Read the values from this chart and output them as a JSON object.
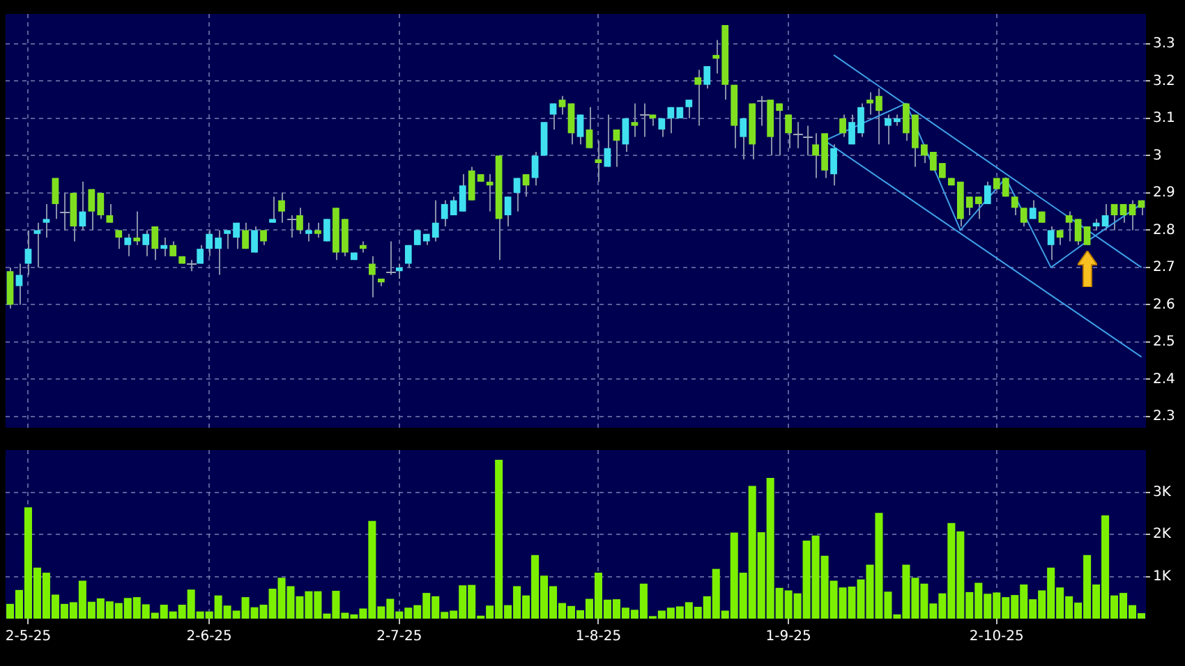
{
  "chart_data": [
    {
      "type": "candlestick",
      "categories": [
        null,
        null,
        null,
        null,
        null,
        null,
        null,
        null,
        null,
        null,
        null,
        null,
        null,
        null,
        null,
        null,
        null,
        null,
        null,
        null,
        null,
        null,
        null,
        null,
        null,
        null,
        null,
        null,
        null,
        null,
        null,
        null,
        null,
        null,
        null,
        null,
        null,
        null,
        null,
        null,
        null,
        null,
        null,
        null,
        null,
        null,
        null,
        null,
        null,
        null,
        null,
        null,
        null,
        null,
        null,
        null,
        null,
        null,
        null,
        null,
        null,
        null,
        null,
        null,
        null,
        null,
        null,
        null,
        null,
        null,
        null,
        null,
        null,
        null,
        null,
        null,
        null,
        null,
        null,
        null,
        null,
        null,
        null,
        null,
        null,
        null,
        null,
        null,
        null,
        null,
        null,
        null,
        null,
        null,
        null,
        null,
        null,
        null,
        null,
        null,
        null,
        null,
        null,
        null,
        null,
        null,
        null,
        null,
        null,
        null,
        null,
        null,
        null,
        null,
        null,
        null,
        null,
        null,
        null,
        null,
        null,
        null,
        null,
        null,
        null,
        null
      ],
      "ohlc": [
        [
          2.69,
          2.7,
          2.59,
          2.6
        ],
        [
          2.65,
          2.71,
          2.6,
          2.68
        ],
        [
          2.71,
          2.8,
          2.68,
          2.75
        ],
        [
          2.79,
          2.82,
          2.7,
          2.8
        ],
        [
          2.82,
          2.87,
          2.78,
          2.83
        ],
        [
          2.94,
          2.94,
          2.83,
          2.87
        ],
        [
          2.85,
          2.9,
          2.8,
          2.85
        ],
        [
          2.9,
          2.9,
          2.77,
          2.81
        ],
        [
          2.81,
          2.93,
          2.8,
          2.85
        ],
        [
          2.91,
          2.91,
          2.8,
          2.85
        ],
        [
          2.9,
          2.9,
          2.83,
          2.84
        ],
        [
          2.84,
          2.87,
          2.82,
          2.82
        ],
        [
          2.8,
          2.8,
          2.75,
          2.78
        ],
        [
          2.76,
          2.79,
          2.73,
          2.78
        ],
        [
          2.78,
          2.85,
          2.76,
          2.77
        ],
        [
          2.76,
          2.8,
          2.73,
          2.79
        ],
        [
          2.81,
          2.81,
          2.72,
          2.75
        ],
        [
          2.75,
          2.78,
          2.73,
          2.76
        ],
        [
          2.76,
          2.77,
          2.73,
          2.73
        ],
        [
          2.73,
          2.73,
          2.71,
          2.71
        ],
        [
          2.71,
          2.72,
          2.69,
          2.71
        ],
        [
          2.71,
          2.76,
          2.71,
          2.75
        ],
        [
          2.75,
          2.8,
          2.73,
          2.79
        ],
        [
          2.75,
          2.8,
          2.68,
          2.78
        ],
        [
          2.79,
          2.8,
          2.75,
          2.8
        ],
        [
          2.78,
          2.82,
          2.75,
          2.82
        ],
        [
          2.8,
          2.82,
          2.75,
          2.75
        ],
        [
          2.74,
          2.81,
          2.74,
          2.8
        ],
        [
          2.8,
          2.8,
          2.76,
          2.77
        ],
        [
          2.82,
          2.89,
          2.82,
          2.83
        ],
        [
          2.88,
          2.9,
          2.82,
          2.85
        ],
        [
          2.83,
          2.84,
          2.78,
          2.83
        ],
        [
          2.84,
          2.86,
          2.79,
          2.8
        ],
        [
          2.79,
          2.82,
          2.77,
          2.8
        ],
        [
          2.8,
          2.82,
          2.78,
          2.79
        ],
        [
          2.77,
          2.83,
          2.77,
          2.83
        ],
        [
          2.86,
          2.86,
          2.72,
          2.74
        ],
        [
          2.83,
          2.83,
          2.73,
          2.74
        ],
        [
          2.72,
          2.74,
          2.72,
          2.74
        ],
        [
          2.76,
          2.77,
          2.74,
          2.75
        ],
        [
          2.71,
          2.73,
          2.62,
          2.68
        ],
        [
          2.67,
          2.67,
          2.65,
          2.66
        ],
        [
          2.69,
          2.77,
          2.68,
          2.69
        ],
        [
          2.69,
          2.71,
          2.67,
          2.7
        ],
        [
          2.71,
          2.76,
          2.7,
          2.76
        ],
        [
          2.76,
          2.8,
          2.76,
          2.8
        ],
        [
          2.77,
          2.79,
          2.76,
          2.79
        ],
        [
          2.78,
          2.88,
          2.77,
          2.82
        ],
        [
          2.83,
          2.88,
          2.81,
          2.87
        ],
        [
          2.84,
          2.89,
          2.84,
          2.88
        ],
        [
          2.85,
          2.95,
          2.85,
          2.92
        ],
        [
          2.96,
          2.97,
          2.88,
          2.88
        ],
        [
          2.95,
          2.95,
          2.93,
          2.93
        ],
        [
          2.93,
          2.95,
          2.85,
          2.92
        ],
        [
          3.0,
          3.0,
          2.72,
          2.83
        ],
        [
          2.84,
          2.89,
          2.81,
          2.89
        ],
        [
          2.9,
          2.94,
          2.85,
          2.94
        ],
        [
          2.95,
          2.95,
          2.89,
          2.92
        ],
        [
          2.94,
          3.01,
          2.92,
          3.0
        ],
        [
          3.0,
          3.09,
          3.0,
          3.09
        ],
        [
          3.11,
          3.14,
          3.07,
          3.14
        ],
        [
          3.15,
          3.16,
          3.11,
          3.13
        ],
        [
          3.14,
          3.14,
          3.03,
          3.06
        ],
        [
          3.05,
          3.11,
          3.03,
          3.11
        ],
        [
          3.07,
          3.13,
          3.02,
          3.02
        ],
        [
          2.99,
          3.04,
          2.93,
          2.98
        ],
        [
          2.97,
          3.11,
          2.97,
          3.02
        ],
        [
          3.07,
          3.07,
          2.97,
          3.04
        ],
        [
          3.03,
          3.1,
          3.01,
          3.1
        ],
        [
          3.09,
          3.14,
          3.05,
          3.08
        ],
        [
          3.11,
          3.14,
          3.05,
          3.11
        ],
        [
          3.11,
          3.11,
          3.08,
          3.1
        ],
        [
          3.07,
          3.1,
          3.05,
          3.1
        ],
        [
          3.1,
          3.13,
          3.06,
          3.13
        ],
        [
          3.1,
          3.13,
          3.1,
          3.13
        ],
        [
          3.13,
          3.15,
          3.1,
          3.15
        ],
        [
          3.21,
          3.23,
          3.08,
          3.19
        ],
        [
          3.19,
          3.24,
          3.18,
          3.24
        ],
        [
          3.27,
          3.31,
          3.22,
          3.26
        ],
        [
          3.35,
          3.35,
          3.15,
          3.19
        ],
        [
          3.19,
          3.19,
          3.02,
          3.08
        ],
        [
          3.05,
          3.1,
          2.99,
          3.1
        ],
        [
          3.14,
          3.14,
          2.99,
          3.03
        ],
        [
          3.15,
          3.16,
          3.08,
          3.15
        ],
        [
          3.15,
          3.15,
          3.0,
          3.05
        ],
        [
          3.14,
          3.14,
          3.0,
          3.12
        ],
        [
          3.11,
          3.11,
          3.02,
          3.06
        ],
        [
          3.06,
          3.09,
          3.02,
          3.06
        ],
        [
          3.05,
          3.08,
          3.0,
          3.05
        ],
        [
          3.03,
          3.06,
          2.94,
          3.0
        ],
        [
          3.06,
          3.06,
          2.94,
          2.96
        ],
        [
          2.95,
          3.03,
          2.92,
          3.02
        ],
        [
          3.1,
          3.11,
          3.05,
          3.06
        ],
        [
          3.03,
          3.11,
          3.03,
          3.09
        ],
        [
          3.06,
          3.14,
          3.05,
          3.13
        ],
        [
          3.15,
          3.17,
          3.11,
          3.14
        ],
        [
          3.16,
          3.18,
          3.03,
          3.12
        ],
        [
          3.08,
          3.11,
          3.03,
          3.1
        ],
        [
          3.09,
          3.11,
          3.08,
          3.1
        ],
        [
          3.14,
          3.14,
          3.04,
          3.06
        ],
        [
          3.11,
          3.11,
          2.97,
          3.02
        ],
        [
          3.03,
          3.03,
          2.98,
          3.0
        ],
        [
          3.01,
          3.01,
          2.96,
          2.96
        ],
        [
          2.98,
          2.98,
          2.94,
          2.94
        ],
        [
          2.94,
          2.94,
          2.92,
          2.92
        ],
        [
          2.93,
          2.93,
          2.81,
          2.83
        ],
        [
          2.89,
          2.89,
          2.84,
          2.86
        ],
        [
          2.89,
          2.89,
          2.83,
          2.87
        ],
        [
          2.87,
          2.93,
          2.87,
          2.92
        ],
        [
          2.94,
          2.94,
          2.91,
          2.91
        ],
        [
          2.94,
          2.94,
          2.89,
          2.89
        ],
        [
          2.89,
          2.89,
          2.84,
          2.86
        ],
        [
          2.86,
          2.86,
          2.81,
          2.82
        ],
        [
          2.83,
          2.88,
          2.83,
          2.86
        ],
        [
          2.85,
          2.85,
          2.82,
          2.82
        ],
        [
          2.76,
          2.81,
          2.72,
          2.8
        ],
        [
          2.8,
          2.8,
          2.76,
          2.78
        ],
        [
          2.84,
          2.85,
          2.77,
          2.82
        ],
        [
          2.83,
          2.83,
          2.76,
          2.77
        ],
        [
          2.81,
          2.81,
          2.76,
          2.76
        ],
        [
          2.81,
          2.83,
          2.8,
          2.82
        ],
        [
          2.81,
          2.87,
          2.8,
          2.84
        ],
        [
          2.87,
          2.87,
          2.8,
          2.84
        ],
        [
          2.87,
          2.87,
          2.82,
          2.84
        ],
        [
          2.87,
          2.88,
          2.8,
          2.84
        ],
        [
          2.88,
          2.88,
          2.84,
          2.86
        ]
      ],
      "colors": [
        "#80e020",
        "#40e0f0",
        "#40e0f0",
        "#40e0f0",
        "#40e0f0",
        "#80e020",
        "#a0a8b8",
        "#80e020",
        "#40e0f0",
        "#80e020",
        "#80e020",
        "#80e020",
        "#80e020",
        "#40e0f0",
        "#80e020",
        "#40e0f0",
        "#80e020",
        "#40e0f0",
        "#80e020",
        "#80e020",
        "#a0a8b8",
        "#40e0f0",
        "#40e0f0",
        "#40e0f0",
        "#40e0f0",
        "#40e0f0",
        "#80e020",
        "#40e0f0",
        "#80e020",
        "#40e0f0",
        "#80e020",
        "#a0a8b8",
        "#80e020",
        "#40e0f0",
        "#80e020",
        "#40e0f0",
        "#80e020",
        "#80e020",
        "#40e0f0",
        "#80e020",
        "#80e020",
        "#80e020",
        "#a0a8b8",
        "#40e0f0",
        "#40e0f0",
        "#40e0f0",
        "#40e0f0",
        "#40e0f0",
        "#40e0f0",
        "#40e0f0",
        "#40e0f0",
        "#80e020",
        "#80e020",
        "#80e020",
        "#80e020",
        "#40e0f0",
        "#40e0f0",
        "#80e020",
        "#40e0f0",
        "#40e0f0",
        "#40e0f0",
        "#80e020",
        "#80e020",
        "#40e0f0",
        "#80e020",
        "#80e020",
        "#40e0f0",
        "#80e020",
        "#40e0f0",
        "#80e020",
        "#a0a8b8",
        "#80e020",
        "#40e0f0",
        "#40e0f0",
        "#40e0f0",
        "#40e0f0",
        "#80e020",
        "#40e0f0",
        "#80e020",
        "#80e020",
        "#80e020",
        "#40e0f0",
        "#80e020",
        "#a0a8b8",
        "#80e020",
        "#80e020",
        "#80e020",
        "#a0a8b8",
        "#a0a8b8",
        "#80e020",
        "#80e020",
        "#40e0f0",
        "#80e020",
        "#40e0f0",
        "#40e0f0",
        "#80e020",
        "#80e020",
        "#40e0f0",
        "#40e0f0",
        "#80e020",
        "#80e020",
        "#80e020",
        "#80e020",
        "#80e020",
        "#80e020",
        "#80e020",
        "#80e020",
        "#80e020",
        "#40e0f0",
        "#80e020",
        "#80e020",
        "#80e020",
        "#80e020",
        "#40e0f0",
        "#80e020",
        "#40e0f0",
        "#80e020",
        "#80e020",
        "#80e020",
        "#80e020",
        "#40e0f0",
        "#40e0f0",
        "#80e020",
        "#80e020",
        "#80e020",
        "#80e020"
      ],
      "series": [
        {
          "type": "line",
          "color": "#3fa0e8",
          "values": [
            null,
            null,
            null,
            null,
            null,
            null,
            null,
            null,
            null,
            null,
            null,
            null,
            null,
            null,
            null,
            null,
            null,
            null,
            null,
            null,
            null,
            null,
            null,
            null,
            null,
            null,
            null,
            null,
            null,
            null,
            null,
            null,
            null,
            null,
            null,
            null,
            null,
            null,
            null,
            null,
            null,
            null,
            null,
            null,
            null,
            null,
            null,
            null,
            null,
            null,
            null,
            null,
            null,
            null,
            null,
            null,
            null,
            null,
            null,
            null,
            null,
            null,
            null,
            null,
            null,
            null,
            null,
            null,
            null,
            null,
            null,
            null,
            null,
            null,
            null,
            null,
            null,
            null,
            null,
            null,
            null,
            null,
            null,
            null,
            null,
            null,
            null,
            null,
            null,
            null,
            null,
            3.27,
            null,
            null,
            null,
            null,
            null,
            null,
            null,
            null,
            null,
            null,
            null,
            null,
            null,
            null,
            null,
            null,
            null,
            null,
            null,
            null,
            null,
            null,
            null,
            null,
            null,
            null,
            null,
            null,
            null,
            null,
            null,
            null,
            null,
            2.7
          ]
        },
        {
          "type": "line",
          "color": "#3fa0e8",
          "values": [
            null,
            null,
            null,
            null,
            null,
            null,
            null,
            null,
            null,
            null,
            null,
            null,
            null,
            null,
            null,
            null,
            null,
            null,
            null,
            null,
            null,
            null,
            null,
            null,
            null,
            null,
            null,
            null,
            null,
            null,
            null,
            null,
            null,
            null,
            null,
            null,
            null,
            null,
            null,
            null,
            null,
            null,
            null,
            null,
            null,
            null,
            null,
            null,
            null,
            null,
            null,
            null,
            null,
            null,
            null,
            null,
            null,
            null,
            null,
            null,
            null,
            null,
            null,
            null,
            null,
            null,
            null,
            null,
            null,
            null,
            null,
            null,
            null,
            null,
            null,
            null,
            null,
            null,
            null,
            null,
            null,
            null,
            null,
            null,
            null,
            null,
            null,
            null,
            null,
            null,
            3.04,
            null,
            null,
            null,
            null,
            null,
            null,
            null,
            null,
            null,
            null,
            null,
            null,
            null,
            null,
            null,
            null,
            null,
            null,
            null,
            null,
            null,
            null,
            null,
            null,
            null,
            null,
            null,
            null,
            null,
            null,
            null,
            null,
            null,
            null,
            2.46
          ]
        },
        {
          "type": "line",
          "color": "#3fa0e8",
          "values": [
            null,
            null,
            null,
            null,
            null,
            null,
            null,
            null,
            null,
            null,
            null,
            null,
            null,
            null,
            null,
            null,
            null,
            null,
            null,
            null,
            null,
            null,
            null,
            null,
            null,
            null,
            null,
            null,
            null,
            null,
            null,
            null,
            null,
            null,
            null,
            null,
            null,
            null,
            null,
            null,
            null,
            null,
            null,
            null,
            null,
            null,
            null,
            null,
            null,
            null,
            null,
            null,
            null,
            null,
            null,
            null,
            null,
            null,
            null,
            null,
            null,
            null,
            null,
            null,
            null,
            null,
            null,
            null,
            null,
            null,
            null,
            null,
            null,
            null,
            null,
            null,
            null,
            null,
            null,
            null,
            null,
            null,
            null,
            null,
            null,
            null,
            null,
            null,
            null,
            null,
            3.04,
            null,
            null,
            null,
            null,
            null,
            null,
            null,
            null,
            3.14,
            null,
            null,
            null,
            null,
            null,
            2.8,
            null,
            null,
            null,
            null,
            2.94,
            null,
            null,
            null,
            null,
            2.7,
            null,
            null,
            null,
            2.77,
            null,
            null,
            null,
            null,
            null,
            2.87
          ]
        }
      ],
      "ylim": [
        2.27,
        3.38
      ],
      "yticks": [
        2.3,
        2.4,
        2.5,
        2.6,
        2.7,
        2.8,
        2.9,
        3,
        3.1,
        3.2,
        3.3
      ],
      "grid": true,
      "tick_labels": "y"
    },
    {
      "type": "bar",
      "categories": [
        null,
        null,
        "2-5-25",
        null,
        null,
        null,
        null,
        null,
        null,
        null,
        null,
        null,
        null,
        null,
        null,
        null,
        null,
        null,
        null,
        null,
        null,
        null,
        "2-6-25",
        null,
        null,
        null,
        null,
        null,
        null,
        null,
        null,
        null,
        null,
        null,
        null,
        null,
        null,
        null,
        null,
        null,
        null,
        null,
        null,
        "2-7-25",
        null,
        null,
        null,
        null,
        null,
        null,
        null,
        null,
        null,
        null,
        null,
        null,
        null,
        null,
        null,
        null,
        null,
        null,
        null,
        null,
        null,
        "1-8-25",
        null,
        null,
        null,
        null,
        null,
        null,
        null,
        null,
        null,
        null,
        null,
        null,
        null,
        null,
        null,
        null,
        null,
        null,
        null,
        null,
        "1-9-25",
        null,
        null,
        null,
        null,
        null,
        null,
        null,
        null,
        null,
        null,
        null,
        null,
        null,
        null,
        null,
        null,
        null,
        null,
        null,
        null,
        null,
        null,
        "2-10-25",
        null,
        null,
        null,
        null,
        null,
        null,
        null,
        null,
        null,
        null,
        null,
        null,
        null,
        null,
        null,
        null
      ],
      "values": [
        0.35,
        0.68,
        2.64,
        1.21,
        1.09,
        0.57,
        0.35,
        0.39,
        0.9,
        0.4,
        0.48,
        0.41,
        0.37,
        0.49,
        0.51,
        0.34,
        0.14,
        0.33,
        0.17,
        0.33,
        0.69,
        0.17,
        0.17,
        0.55,
        0.31,
        0.19,
        0.51,
        0.27,
        0.33,
        0.71,
        0.97,
        0.77,
        0.53,
        0.65,
        0.65,
        0.12,
        0.66,
        0.14,
        0.1,
        0.24,
        2.32,
        0.29,
        0.47,
        0.17,
        0.26,
        0.32,
        0.61,
        0.53,
        0.16,
        0.19,
        0.79,
        0.8,
        0.07,
        0.31,
        3.77,
        0.32,
        0.77,
        0.55,
        1.51,
        1.02,
        0.77,
        0.37,
        0.3,
        0.2,
        0.47,
        1.09,
        0.45,
        0.46,
        0.26,
        0.21,
        0.83,
        0.06,
        0.19,
        0.26,
        0.29,
        0.39,
        0.28,
        0.53,
        1.18,
        0.19,
        2.04,
        1.09,
        3.15,
        2.05,
        3.34,
        0.73,
        0.67,
        0.6,
        1.85,
        1.97,
        1.49,
        0.9,
        0.74,
        0.76,
        0.93,
        1.28,
        2.51,
        0.64,
        0.1,
        1.28,
        0.97,
        0.83,
        0.36,
        0.6,
        2.27,
        2.07,
        0.63,
        0.85,
        0.59,
        0.62,
        0.51,
        0.56,
        0.81,
        0.46,
        0.67,
        1.21,
        0.74,
        0.53,
        0.38,
        1.51,
        0.81,
        2.45,
        0.55,
        0.61,
        0.32,
        0.13
      ],
      "color": "#7cf000",
      "ylim": [
        0,
        4
      ],
      "yticks": [
        {
          "value": 1,
          "label": "1K"
        },
        {
          "value": 2,
          "label": "2K"
        },
        {
          "value": 3,
          "label": "3K"
        }
      ],
      "grid": true
    }
  ]
}
